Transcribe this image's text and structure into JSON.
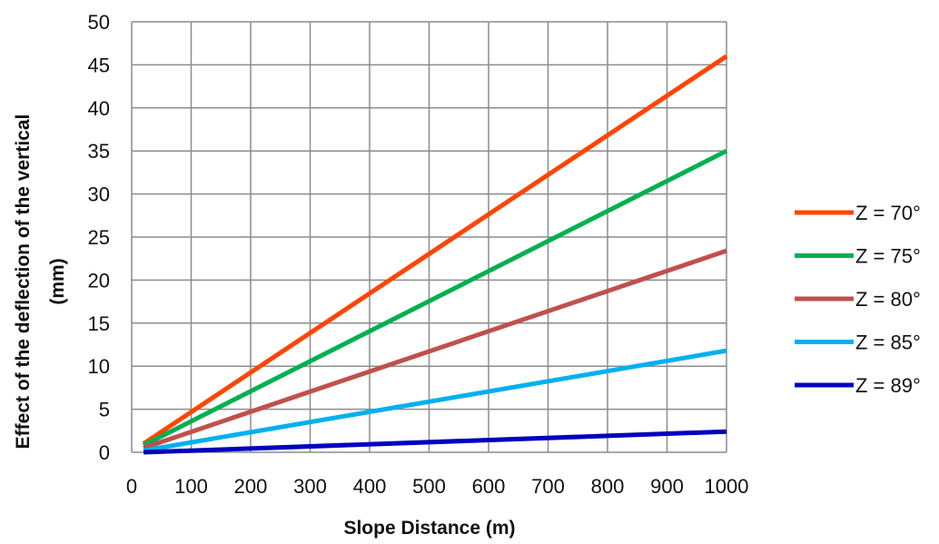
{
  "chart_data": {
    "type": "line",
    "xlabel": "Slope Distance (m)",
    "ylabel_lines": [
      "Effect of the deflection of the vertical",
      "(mm)"
    ],
    "xlim": [
      0,
      1000
    ],
    "ylim": [
      0,
      50
    ],
    "xticks": [
      0,
      100,
      200,
      300,
      400,
      500,
      600,
      700,
      800,
      900,
      1000
    ],
    "yticks": [
      0,
      5,
      10,
      15,
      20,
      25,
      30,
      35,
      40,
      45,
      50
    ],
    "grid": true,
    "legend_position": "right",
    "series": [
      {
        "name": "Z = 70°",
        "color": "#ff4500",
        "x": [
          20,
          1000
        ],
        "y": [
          1.0,
          46.0
        ]
      },
      {
        "name": "Z = 75°",
        "color": "#00b050",
        "x": [
          20,
          1000
        ],
        "y": [
          0.8,
          35.0
        ]
      },
      {
        "name": "Z = 80°",
        "color": "#c0504d",
        "x": [
          20,
          1000
        ],
        "y": [
          0.5,
          23.4
        ]
      },
      {
        "name": "Z = 85°",
        "color": "#00b0f0",
        "x": [
          20,
          1000
        ],
        "y": [
          0.2,
          11.8
        ]
      },
      {
        "name": "Z = 89°",
        "color": "#0000c0",
        "x": [
          20,
          1000
        ],
        "y": [
          0.0,
          2.4
        ]
      }
    ]
  }
}
